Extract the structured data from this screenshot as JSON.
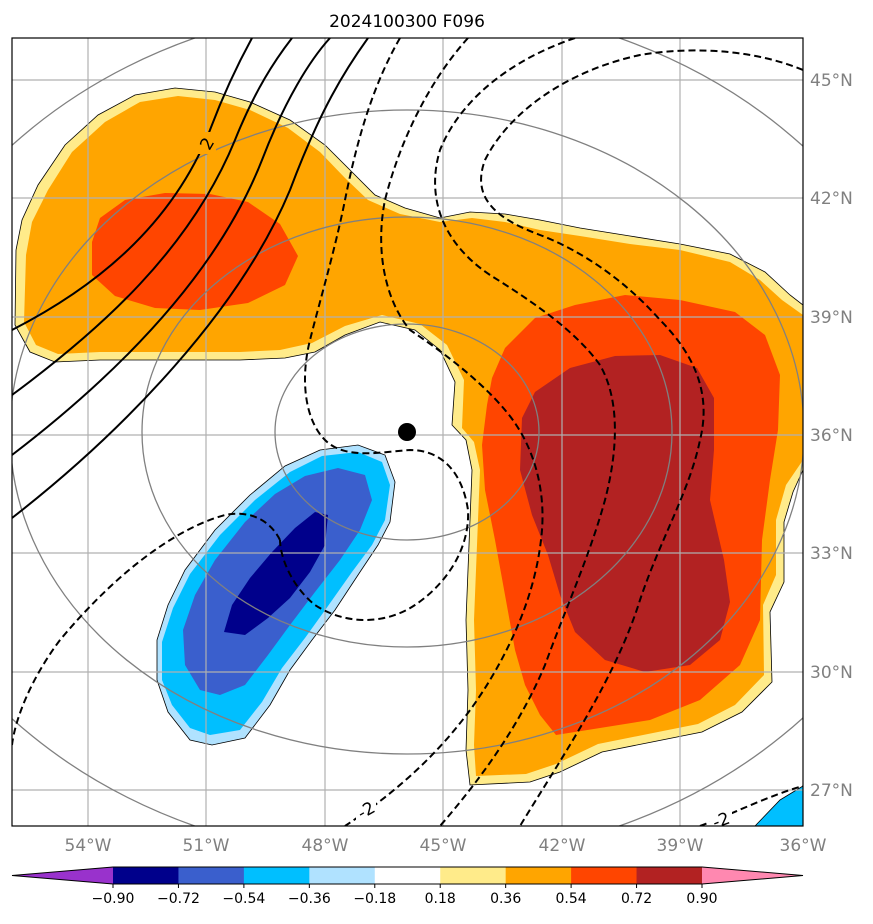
{
  "title": "2024100300 F096",
  "latitude_labels": [
    "45°N",
    "42°N",
    "39°N",
    "36°N",
    "33°N",
    "30°N",
    "27°N"
  ],
  "longitude_labels": [
    "54°W",
    "51°W",
    "48°W",
    "45°W",
    "42°W",
    "39°W",
    "36°W"
  ],
  "colorbar": {
    "ticks": [
      "−0.90",
      "−0.72",
      "−0.54",
      "−0.36",
      "−0.18",
      "0.18",
      "0.36",
      "0.54",
      "0.72",
      "0.90"
    ],
    "colors": {
      "under": "#9932cc",
      "bins": [
        "#00008b",
        "#3a5fcd",
        "#00bfff",
        "#b0e2ff",
        "#ffffff",
        "#ffeb8a",
        "#ffa500",
        "#ff4500",
        "#b22222"
      ],
      "over": "#ff88b0"
    }
  },
  "contour_labels": [
    "2",
    "-2",
    "-2"
  ],
  "storm_center_icon": "storm-center-dot",
  "colors": {
    "grid": "#b0b0b0",
    "range_rings": "#808080",
    "contour": "#000000"
  }
}
